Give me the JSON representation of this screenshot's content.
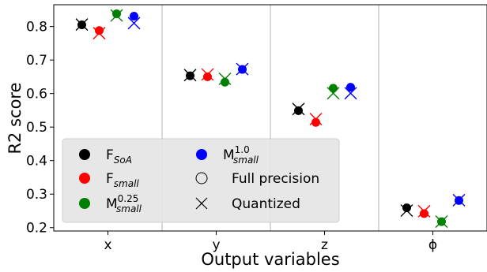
{
  "chart_data": {
    "type": "scatter",
    "title": "",
    "xlabel": "Output variables",
    "ylabel": "R2 score",
    "categories": [
      "x",
      "y",
      "z",
      "ϕ"
    ],
    "ylim": [
      0.19,
      0.865
    ],
    "yticks": [
      0.2,
      0.3,
      0.4,
      0.5,
      0.6,
      0.7,
      0.8
    ],
    "ytick_labels": [
      "0.2",
      "0.3",
      "0.4",
      "0.5",
      "0.6",
      "0.7",
      "0.8"
    ],
    "grid": "vertical separators between categories",
    "legend_position": "lower-left",
    "series": [
      {
        "name": "F_SoA",
        "color": "#000000",
        "full_precision": [
          0.805,
          0.653,
          0.549,
          0.259
        ],
        "quantized": [
          0.806,
          0.655,
          0.554,
          0.251
        ]
      },
      {
        "name": "F_small",
        "color": "#ff0000",
        "full_precision": [
          0.788,
          0.65,
          0.514,
          0.242
        ],
        "quantized": [
          0.78,
          0.657,
          0.524,
          0.249
        ]
      },
      {
        "name": "M_small^0.25",
        "color": "#008000",
        "full_precision": [
          0.838,
          0.634,
          0.616,
          0.218
        ],
        "quantized": [
          0.833,
          0.644,
          0.601,
          0.218
        ]
      },
      {
        "name": "M_small^1.0",
        "color": "#0000ff",
        "full_precision": [
          0.831,
          0.672,
          0.619,
          0.281
        ],
        "quantized": [
          0.81,
          0.673,
          0.601,
          0.282
        ]
      }
    ]
  },
  "legend": {
    "series": [
      {
        "base": "F",
        "sub": "SoA",
        "sup": "",
        "color": "#000000"
      },
      {
        "base": "F",
        "sub": "small",
        "sup": "",
        "color": "#ff0000"
      },
      {
        "base": "M",
        "sub": "small",
        "sup": "0.25",
        "color": "#008000"
      },
      {
        "base": "M",
        "sub": "small",
        "sup": "1.0",
        "color": "#0000ff"
      }
    ],
    "markers": [
      {
        "label": "Full precision",
        "shape": "circle-outline"
      },
      {
        "label": "Quantized",
        "shape": "x"
      }
    ]
  }
}
